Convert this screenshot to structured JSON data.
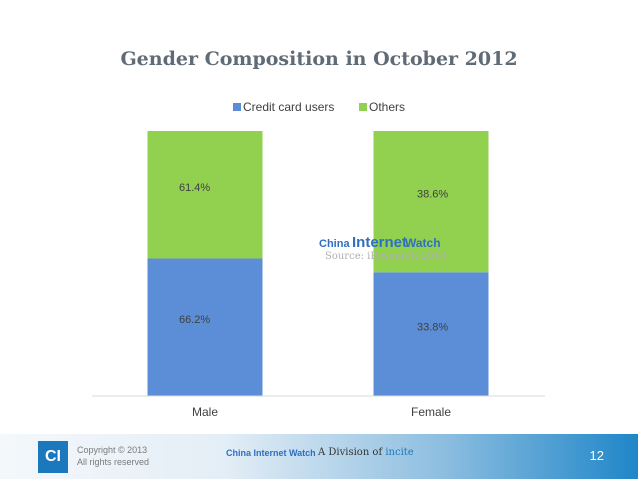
{
  "chart_data": {
    "type": "bar",
    "stacked": true,
    "title": "Gender Composition in October 2012",
    "categories": [
      "Male",
      "Female"
    ],
    "series": [
      {
        "name": "Credit card users",
        "color": "#5b8ed6",
        "values": [
          66.2,
          33.8
        ],
        "labels": [
          "66.2%",
          "33.8%"
        ]
      },
      {
        "name": "Others",
        "color": "#92d050",
        "values": [
          61.4,
          38.6
        ],
        "labels": [
          "61.4%",
          "38.6%"
        ]
      }
    ],
    "legend_position": "top",
    "grid": false
  },
  "watermark": {
    "china": "China",
    "internet": "Internet",
    "watch": "Watch",
    "source": "Source: iResearch 2013"
  },
  "footer": {
    "logo": "CI",
    "copyright": "Copyright © 2013",
    "rights": "All rights reserved",
    "brand": "China Internet Watch",
    "division_prefix": "A Division of",
    "division_name": "incite",
    "page_number": "12"
  }
}
